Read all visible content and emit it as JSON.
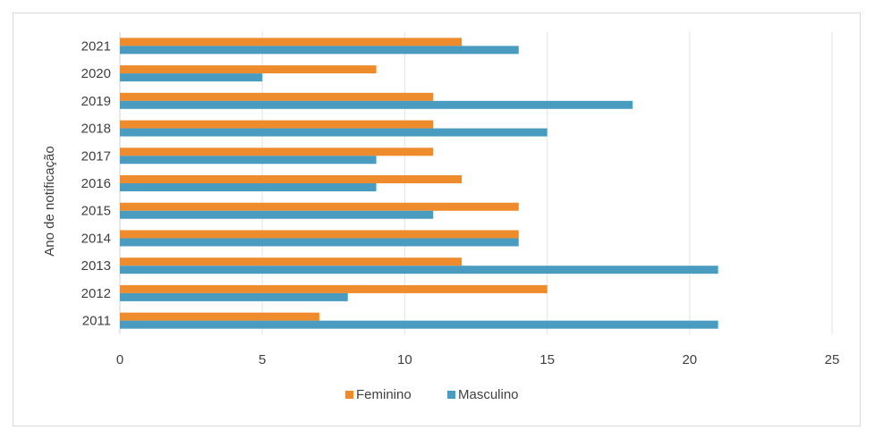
{
  "chart_data": {
    "type": "bar",
    "orientation": "horizontal",
    "title": "",
    "xlabel": "",
    "ylabel": "Ano de notificação",
    "categories": [
      "2011",
      "2012",
      "2013",
      "2014",
      "2015",
      "2016",
      "2017",
      "2018",
      "2019",
      "2020",
      "2021"
    ],
    "series": [
      {
        "name": "Feminino",
        "color": "#ED8B2D",
        "values": [
          7,
          15,
          12,
          14,
          14,
          12,
          11,
          11,
          11,
          9,
          12
        ]
      },
      {
        "name": "Masculino",
        "color": "#4A9BC0",
        "values": [
          21,
          8,
          21,
          14,
          11,
          9,
          9,
          15,
          18,
          5,
          14
        ]
      }
    ],
    "xlim": [
      0,
      25
    ],
    "xticks": [
      "0",
      "5",
      "10",
      "15",
      "20",
      "25"
    ],
    "grid": "vertical",
    "legend_position": "bottom"
  }
}
